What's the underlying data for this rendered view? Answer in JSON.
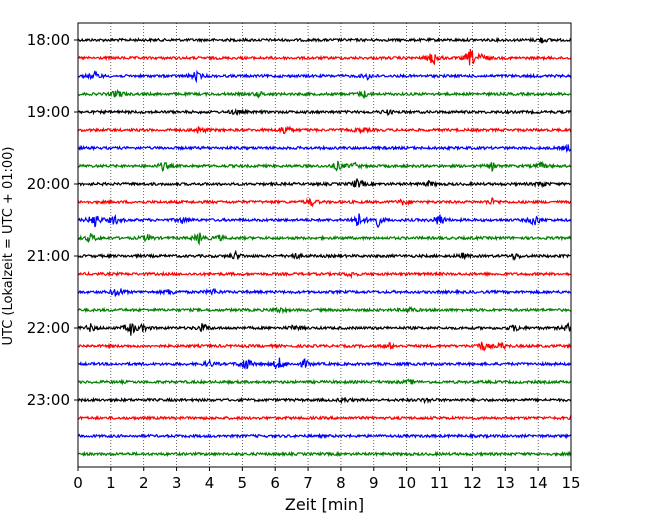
{
  "chart_data": {
    "type": "line",
    "title": "",
    "xlabel": "Zeit  [min]",
    "ylabel": "UTC (Lokalzeit = UTC + 01:00)",
    "xlim": [
      0,
      15
    ],
    "x_ticks": [
      0,
      1,
      2,
      3,
      4,
      5,
      6,
      7,
      8,
      9,
      10,
      11,
      12,
      13,
      14,
      15
    ],
    "x_tick_labels": [
      "0",
      "1",
      "2",
      "3",
      "4",
      "5",
      "6",
      "7",
      "8",
      "9",
      "10",
      "11",
      "12",
      "13",
      "14",
      "15"
    ],
    "grid": "vertical dotted",
    "series_colors": [
      "#000000",
      "#ff0000",
      "#0000ff",
      "#008000"
    ],
    "traces": [
      {
        "start": "18:00",
        "color": "#000000",
        "bursts": [
          [
            14.1,
            0.5
          ]
        ]
      },
      {
        "start": "18:15",
        "color": "#ff0000",
        "bursts": [
          [
            10.8,
            1.6
          ],
          [
            11.95,
            1.9
          ],
          [
            12.3,
            0.8
          ]
        ]
      },
      {
        "start": "18:30",
        "color": "#0000ff",
        "bursts": [
          [
            0.5,
            0.9
          ],
          [
            3.6,
            0.9
          ],
          [
            8.8,
            0.6
          ]
        ]
      },
      {
        "start": "18:45",
        "color": "#008000",
        "bursts": [
          [
            1.2,
            0.9
          ],
          [
            5.5,
            0.5
          ],
          [
            8.7,
            0.7
          ]
        ]
      },
      {
        "start": "19:00",
        "color": "#000000",
        "bursts": [
          [
            4.8,
            0.5
          ],
          [
            9.4,
            0.5
          ]
        ]
      },
      {
        "start": "19:15",
        "color": "#ff0000",
        "bursts": [
          [
            3.7,
            0.8
          ],
          [
            6.3,
            1.2
          ],
          [
            8.6,
            0.5
          ]
        ]
      },
      {
        "start": "19:30",
        "color": "#0000ff",
        "bursts": [
          [
            14.9,
            0.6
          ]
        ]
      },
      {
        "start": "19:45",
        "color": "#008000",
        "bursts": [
          [
            2.6,
            0.9
          ],
          [
            7.9,
            0.9
          ],
          [
            8.4,
            0.6
          ],
          [
            12.6,
            0.7
          ],
          [
            14.1,
            0.6
          ]
        ]
      },
      {
        "start": "20:00",
        "color": "#000000",
        "bursts": [
          [
            8.5,
            1.0
          ],
          [
            10.7,
            0.5
          ],
          [
            14.1,
            0.6
          ]
        ]
      },
      {
        "start": "20:15",
        "color": "#ff0000",
        "bursts": [
          [
            7.1,
            0.8
          ],
          [
            9.9,
            0.6
          ],
          [
            12.6,
            0.6
          ]
        ]
      },
      {
        "start": "20:30",
        "color": "#0000ff",
        "bursts": [
          [
            0.5,
            1.7
          ],
          [
            1.1,
            1.0
          ],
          [
            3.2,
            0.7
          ],
          [
            8.5,
            1.8
          ],
          [
            9.1,
            1.5
          ],
          [
            11.0,
            1.4
          ],
          [
            13.9,
            1.3
          ]
        ]
      },
      {
        "start": "20:45",
        "color": "#008000",
        "bursts": [
          [
            0.4,
            0.9
          ],
          [
            2.1,
            0.7
          ],
          [
            3.7,
            1.1
          ],
          [
            4.3,
            0.5
          ]
        ]
      },
      {
        "start": "21:00",
        "color": "#000000",
        "bursts": [
          [
            4.8,
            0.8
          ],
          [
            6.6,
            0.6
          ],
          [
            11.7,
            0.5
          ],
          [
            13.3,
            0.6
          ]
        ]
      },
      {
        "start": "21:15",
        "color": "#ff0000",
        "bursts": [
          [
            8.3,
            0.5
          ]
        ]
      },
      {
        "start": "21:30",
        "color": "#0000ff",
        "bursts": [
          [
            1.2,
            1.3
          ],
          [
            2.8,
            0.6
          ],
          [
            4.1,
            0.6
          ]
        ]
      },
      {
        "start": "21:45",
        "color": "#008000",
        "bursts": [
          [
            6.1,
            0.6
          ],
          [
            10.1,
            0.5
          ]
        ]
      },
      {
        "start": "22:00",
        "color": "#000000",
        "bursts": [
          [
            0.4,
            0.8
          ],
          [
            1.6,
            1.5
          ],
          [
            2.0,
            0.7
          ],
          [
            3.8,
            0.9
          ],
          [
            6.6,
            0.6
          ],
          [
            13.3,
            0.7
          ],
          [
            14.9,
            0.8
          ]
        ]
      },
      {
        "start": "22:15",
        "color": "#ff0000",
        "bursts": [
          [
            9.5,
            0.6
          ],
          [
            12.3,
            1.0
          ],
          [
            12.9,
            0.6
          ]
        ]
      },
      {
        "start": "22:30",
        "color": "#0000ff",
        "bursts": [
          [
            4.0,
            0.6
          ],
          [
            5.1,
            1.5
          ],
          [
            6.1,
            1.3
          ],
          [
            6.9,
            0.8
          ]
        ]
      },
      {
        "start": "22:45",
        "color": "#008000",
        "bursts": [
          [
            10.1,
            0.4
          ]
        ]
      },
      {
        "start": "23:00",
        "color": "#000000",
        "bursts": [
          [
            8.1,
            0.4
          ],
          [
            10.6,
            0.4
          ]
        ]
      },
      {
        "start": "23:15",
        "color": "#ff0000",
        "bursts": []
      },
      {
        "start": "23:30",
        "color": "#0000ff",
        "bursts": []
      },
      {
        "start": "23:45",
        "color": "#008000",
        "bursts": []
      }
    ],
    "y_tick_labels": [
      "18:00",
      "19:00",
      "20:00",
      "21:00",
      "22:00",
      "23:00"
    ]
  }
}
